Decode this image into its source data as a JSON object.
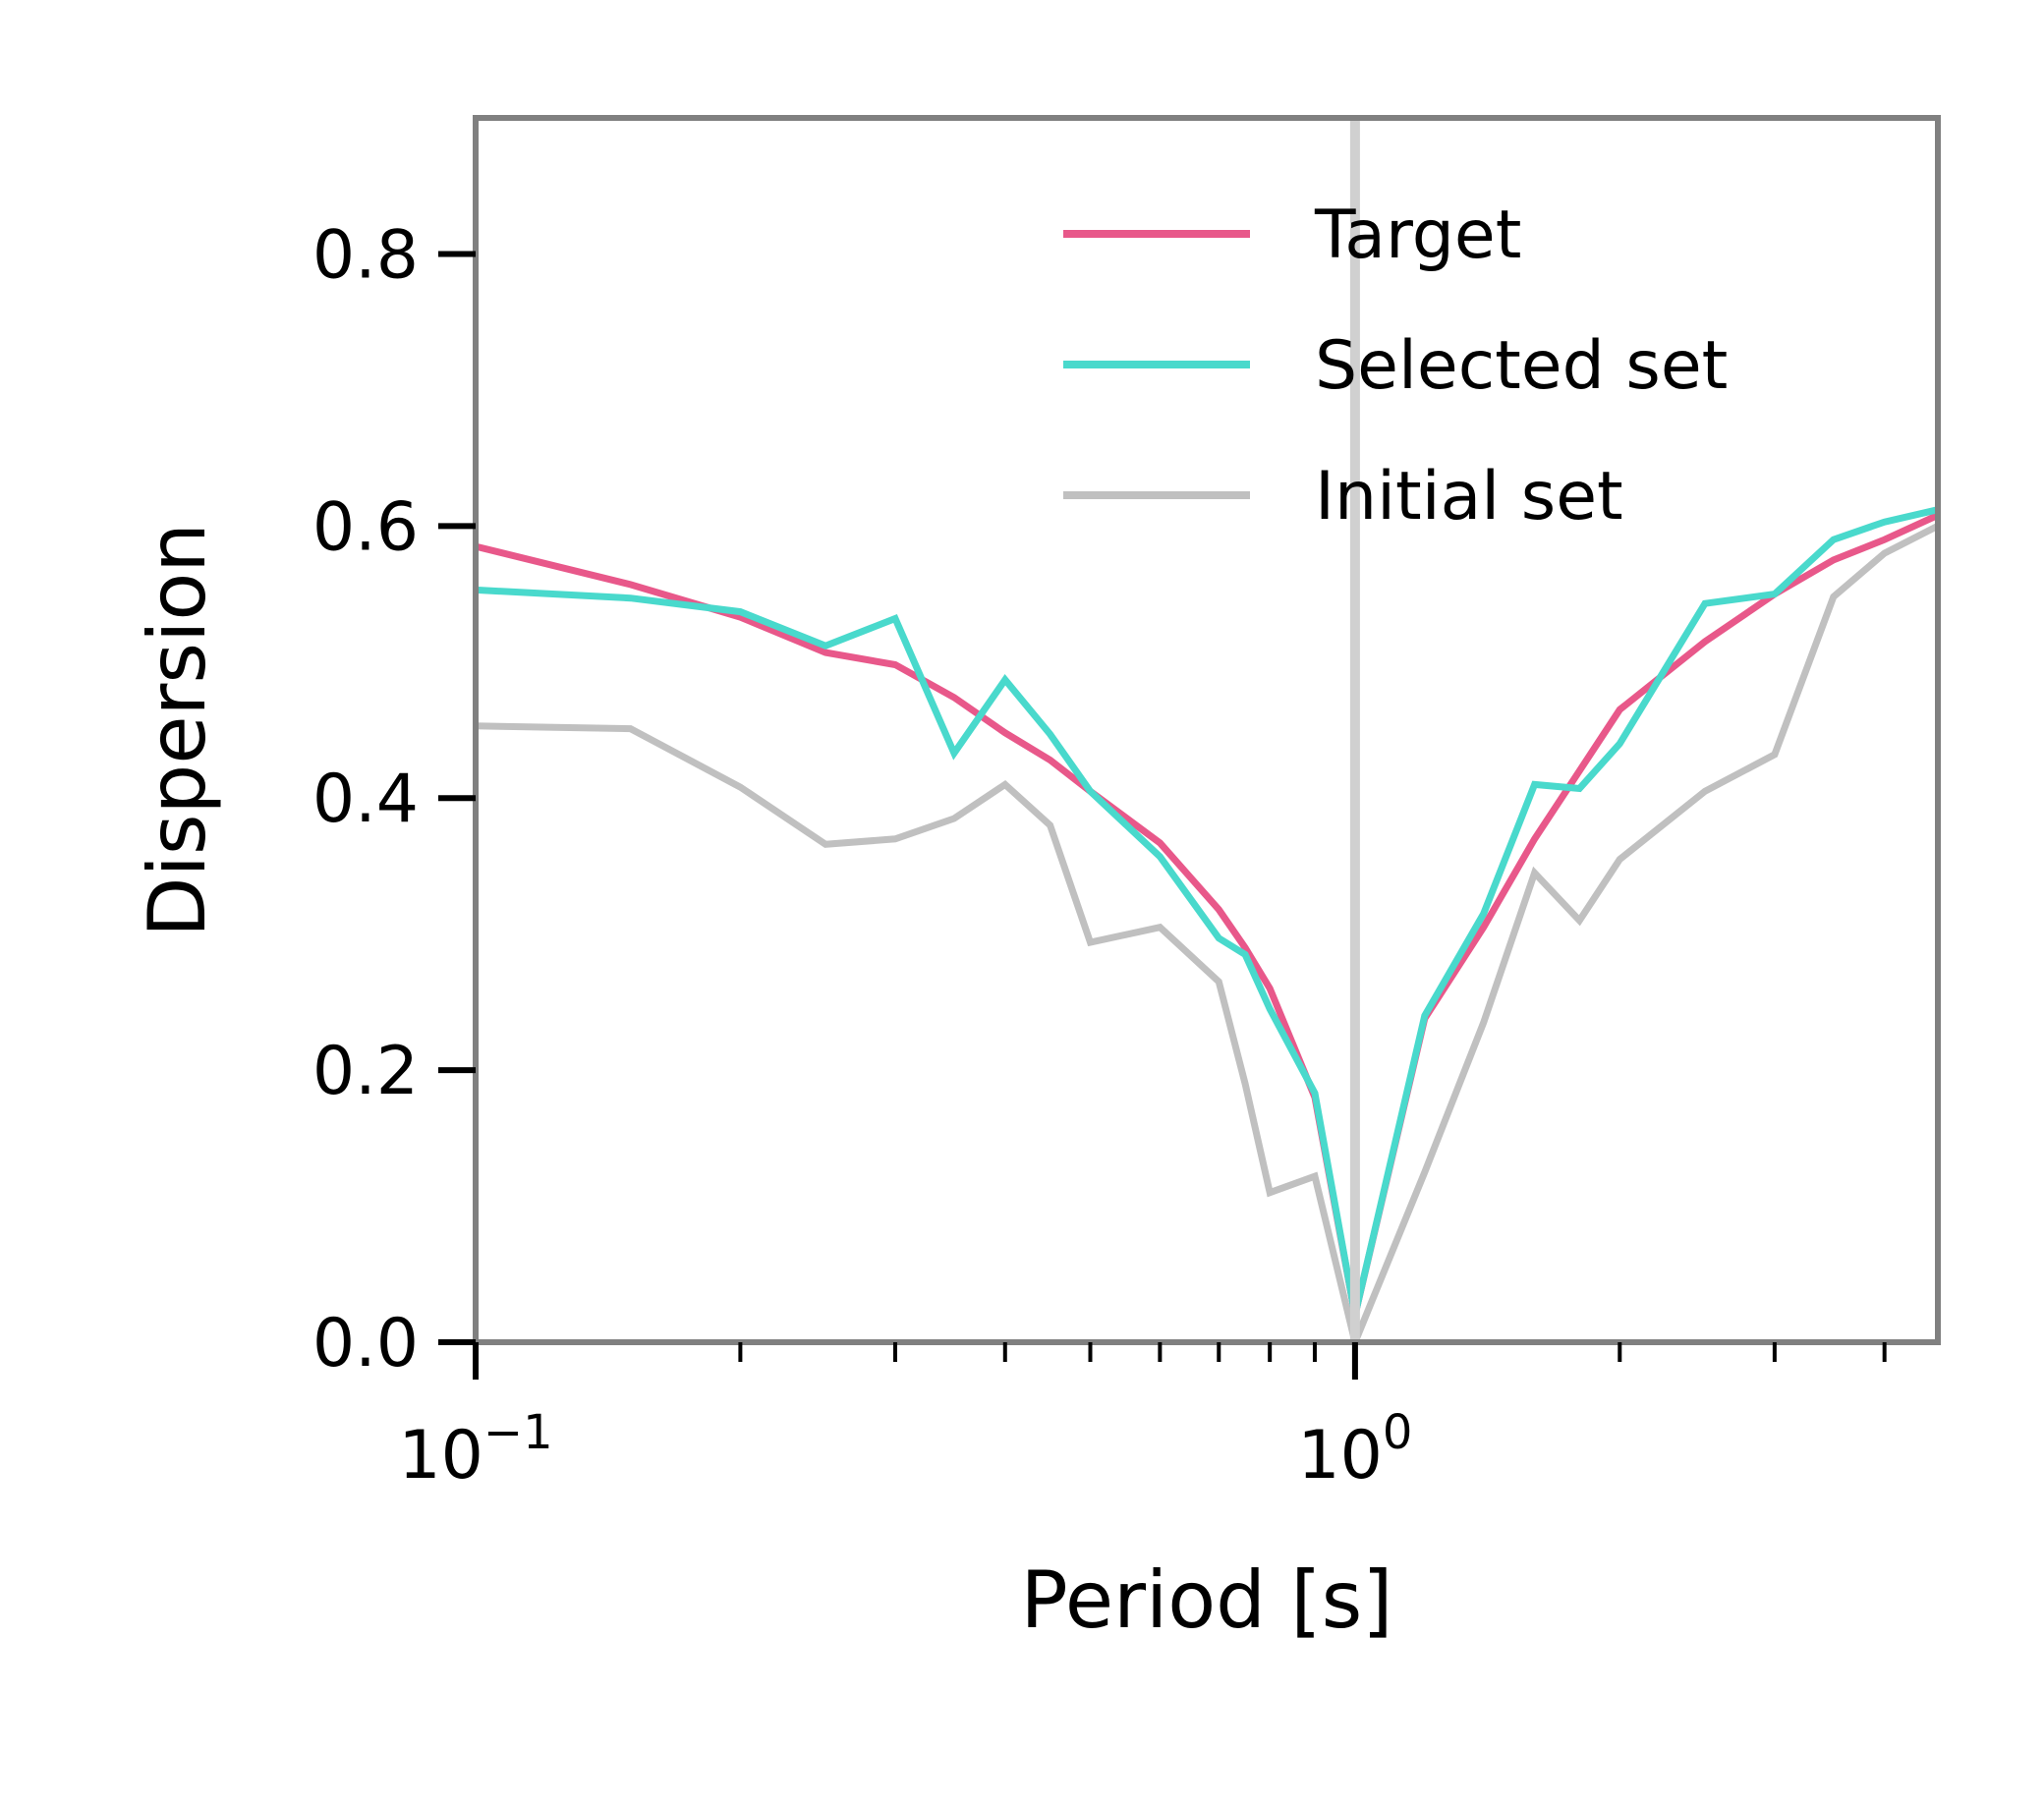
{
  "chart_data": {
    "type": "line",
    "xlabel": "Period [s]",
    "ylabel": "Dispersion",
    "xscale": "log",
    "xlim": [
      0.1,
      4.6
    ],
    "ylim": [
      0,
      0.9
    ],
    "grid": false,
    "legend_position": "top-right",
    "x_ticks": [
      {
        "value": 0.1,
        "base": "10",
        "exp": "−1"
      },
      {
        "value": 1,
        "base": "10",
        "exp": "0"
      }
    ],
    "y_ticks": [
      "0.0",
      "0.2",
      "0.4",
      "0.6",
      "0.8"
    ],
    "y_tick_values": [
      0,
      0.2,
      0.4,
      0.6,
      0.8
    ],
    "reference_line_x": 1,
    "series": [
      {
        "name": "Target",
        "color": "#e8588a",
        "points": [
          [
            0.1,
            0.585
          ],
          [
            0.15,
            0.557
          ],
          [
            0.2,
            0.533
          ],
          [
            0.25,
            0.507
          ],
          [
            0.3,
            0.498
          ],
          [
            0.35,
            0.474
          ],
          [
            0.4,
            0.448
          ],
          [
            0.45,
            0.428
          ],
          [
            0.5,
            0.405
          ],
          [
            0.6,
            0.367
          ],
          [
            0.7,
            0.318
          ],
          [
            0.75,
            0.29
          ],
          [
            0.8,
            0.26
          ],
          [
            0.9,
            0.18
          ],
          [
            1.0,
            0.02
          ],
          [
            1.2,
            0.238
          ],
          [
            1.4,
            0.305
          ],
          [
            1.6,
            0.37
          ],
          [
            1.8,
            0.42
          ],
          [
            2.0,
            0.465
          ],
          [
            2.5,
            0.515
          ],
          [
            3.0,
            0.55
          ],
          [
            3.5,
            0.575
          ],
          [
            4.0,
            0.59
          ],
          [
            4.6,
            0.608
          ]
        ]
      },
      {
        "name": "Selected set",
        "color": "#49d9cc",
        "points": [
          [
            0.1,
            0.553
          ],
          [
            0.15,
            0.547
          ],
          [
            0.2,
            0.537
          ],
          [
            0.25,
            0.512
          ],
          [
            0.3,
            0.532
          ],
          [
            0.35,
            0.433
          ],
          [
            0.4,
            0.487
          ],
          [
            0.45,
            0.447
          ],
          [
            0.5,
            0.405
          ],
          [
            0.6,
            0.357
          ],
          [
            0.7,
            0.297
          ],
          [
            0.75,
            0.285
          ],
          [
            0.8,
            0.245
          ],
          [
            0.9,
            0.183
          ],
          [
            1.0,
            0.02
          ],
          [
            1.2,
            0.24
          ],
          [
            1.4,
            0.315
          ],
          [
            1.6,
            0.41
          ],
          [
            1.8,
            0.407
          ],
          [
            2.0,
            0.44
          ],
          [
            2.5,
            0.543
          ],
          [
            3.0,
            0.55
          ],
          [
            3.5,
            0.59
          ],
          [
            4.0,
            0.603
          ],
          [
            4.6,
            0.612
          ]
        ]
      },
      {
        "name": "Initial set",
        "color": "#c0c0c0",
        "points": [
          [
            0.1,
            0.453
          ],
          [
            0.15,
            0.451
          ],
          [
            0.2,
            0.408
          ],
          [
            0.25,
            0.366
          ],
          [
            0.3,
            0.37
          ],
          [
            0.35,
            0.385
          ],
          [
            0.4,
            0.41
          ],
          [
            0.45,
            0.38
          ],
          [
            0.5,
            0.294
          ],
          [
            0.6,
            0.305
          ],
          [
            0.7,
            0.265
          ],
          [
            0.75,
            0.19
          ],
          [
            0.8,
            0.11
          ],
          [
            0.9,
            0.122
          ],
          [
            1.0,
            0.0
          ],
          [
            1.2,
            0.125
          ],
          [
            1.4,
            0.235
          ],
          [
            1.6,
            0.345
          ],
          [
            1.8,
            0.31
          ],
          [
            2.0,
            0.355
          ],
          [
            2.5,
            0.405
          ],
          [
            3.0,
            0.432
          ],
          [
            3.5,
            0.548
          ],
          [
            4.0,
            0.58
          ],
          [
            4.6,
            0.6
          ]
        ]
      }
    ]
  }
}
